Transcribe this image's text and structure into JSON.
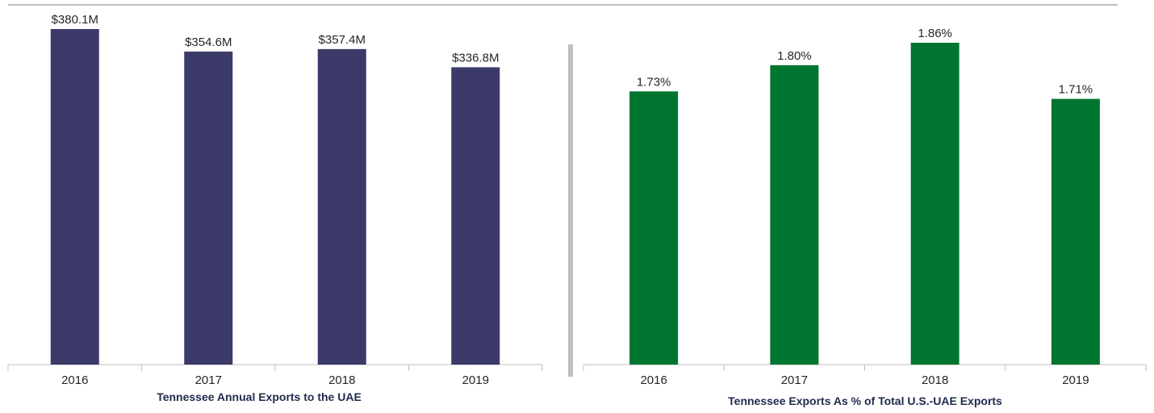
{
  "chart_data": [
    {
      "type": "bar",
      "title": "Tennessee Annual Exports to the UAE",
      "xlabel": "",
      "ylabel": "",
      "categories": [
        "2016",
        "2017",
        "2018",
        "2019"
      ],
      "values": [
        380.1,
        354.6,
        357.4,
        336.8
      ],
      "value_labels": [
        "$380.1M",
        "$354.6M",
        "$357.4M",
        "$336.8M"
      ],
      "unit": "$M",
      "ylim": [
        0,
        380.1
      ],
      "grid": false,
      "bar_color": "#3b3a69"
    },
    {
      "type": "bar",
      "title": "Tennessee Exports As % of Total U.S.-UAE Exports",
      "xlabel": "",
      "ylabel": "",
      "categories": [
        "2016",
        "2017",
        "2018",
        "2019"
      ],
      "values": [
        1.73,
        1.8,
        1.86,
        1.71
      ],
      "value_labels": [
        "1.73%",
        "1.80%",
        "1.86%",
        "1.71%"
      ],
      "unit": "%",
      "ylim": [
        1.0,
        1.86
      ],
      "grid": false,
      "bar_color": "#00752f"
    }
  ],
  "colors": {
    "axis": "#bfbfbf",
    "top_rule": "#bfbfbf",
    "divider": "#c0c0c0",
    "text": "#262626",
    "title_text": "#1f2a4d"
  }
}
